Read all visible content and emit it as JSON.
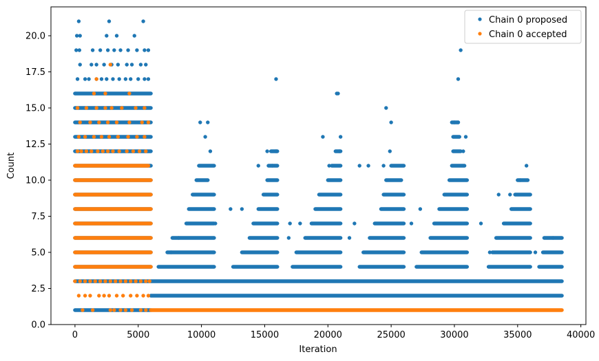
{
  "chart_data": {
    "type": "scatter",
    "title": "",
    "xlabel": "Iteration",
    "ylabel": "Count",
    "xlim": [
      -1900,
      40400
    ],
    "ylim": [
      0,
      22
    ],
    "x_ticks": [
      0,
      5000,
      10000,
      15000,
      20000,
      25000,
      30000,
      35000,
      40000
    ],
    "x_tick_labels": [
      "0",
      "5000",
      "10000",
      "15000",
      "20000",
      "25000",
      "30000",
      "35000",
      "40000"
    ],
    "y_ticks": [
      0.0,
      2.5,
      5.0,
      7.5,
      10.0,
      12.5,
      15.0,
      17.5,
      20.0
    ],
    "y_tick_labels": [
      "0.0",
      "2.5",
      "5.0",
      "7.5",
      "10.0",
      "12.5",
      "15.0",
      "17.5",
      "20.0"
    ],
    "grid": false,
    "legend": {
      "position": "top-right"
    },
    "series": [
      {
        "name": "Chain 0 proposed",
        "color": "#1f77b4",
        "bands": [
          {
            "y": 1,
            "segments": [
              [
                0,
                6000
              ]
            ]
          },
          {
            "y": 2,
            "segments": [
              [
                6000,
                38500
              ]
            ]
          },
          {
            "y": 3,
            "segments": [
              [
                0,
                38500
              ]
            ]
          },
          {
            "y": 4,
            "segments": [
              [
                0,
                6000
              ],
              [
                6600,
                11000
              ],
              [
                12500,
                16000
              ],
              [
                17200,
                21000
              ],
              [
                22500,
                26000
              ],
              [
                27000,
                31000
              ],
              [
                32700,
                36000
              ],
              [
                36700,
                38500
              ]
            ]
          },
          {
            "y": 5,
            "segments": [
              [
                0,
                6000
              ],
              [
                7300,
                11000
              ],
              [
                13200,
                16000
              ],
              [
                17500,
                21000
              ],
              [
                22800,
                26000
              ],
              [
                27400,
                31000
              ],
              [
                33000,
                36000
              ],
              [
                37000,
                38500
              ]
            ]
          },
          {
            "y": 6,
            "segments": [
              [
                0,
                6000
              ],
              [
                7700,
                11000
              ],
              [
                13800,
                16000
              ],
              [
                18200,
                21000
              ],
              [
                23300,
                26000
              ],
              [
                28100,
                31000
              ],
              [
                33300,
                36000
              ],
              [
                37100,
                38500
              ]
            ]
          },
          {
            "y": 7,
            "segments": [
              [
                0,
                6000
              ],
              [
                8800,
                11000
              ],
              [
                14100,
                16000
              ],
              [
                18700,
                21000
              ],
              [
                23700,
                26000
              ],
              [
                28400,
                31000
              ],
              [
                33900,
                36000
              ]
            ]
          },
          {
            "y": 8,
            "segments": [
              [
                0,
                6000
              ],
              [
                9000,
                11000
              ],
              [
                14500,
                16000
              ],
              [
                19000,
                21000
              ],
              [
                24200,
                26000
              ],
              [
                28800,
                31000
              ],
              [
                34500,
                36000
              ]
            ]
          },
          {
            "y": 9,
            "segments": [
              [
                0,
                6000
              ],
              [
                9300,
                11000
              ],
              [
                14900,
                16000
              ],
              [
                19300,
                21000
              ],
              [
                24400,
                26000
              ],
              [
                29200,
                31000
              ],
              [
                34800,
                36000
              ]
            ]
          },
          {
            "y": 10,
            "segments": [
              [
                0,
                6000
              ],
              [
                9600,
                10500
              ],
              [
                15200,
                16000
              ],
              [
                20000,
                21000
              ],
              [
                24600,
                25800
              ],
              [
                29600,
                31000
              ],
              [
                35000,
                35800
              ]
            ]
          },
          {
            "y": 11,
            "segments": [
              [
                0,
                6000
              ],
              [
                9800,
                11000
              ],
              [
                15300,
                16000
              ],
              [
                20300,
                21000
              ],
              [
                25000,
                26000
              ],
              [
                29800,
                30800
              ]
            ]
          },
          {
            "y": 12,
            "segments": [
              [
                0,
                6000
              ],
              [
                15500,
                16000
              ],
              [
                20600,
                21000
              ],
              [
                29900,
                30500
              ]
            ]
          },
          {
            "y": 13,
            "segments": [
              [
                0,
                6000
              ],
              [
                29900,
                30400
              ]
            ]
          },
          {
            "y": 14,
            "segments": [
              [
                0,
                6000
              ],
              [
                29800,
                30300
              ]
            ]
          },
          {
            "y": 15,
            "segments": [
              [
                0,
                6000
              ]
            ]
          },
          {
            "y": 16,
            "segments": [
              [
                0,
                6000
              ]
            ]
          }
        ],
        "points": [
          [
            9900,
            14
          ],
          [
            10500,
            14
          ],
          [
            10300,
            13
          ],
          [
            10700,
            12
          ],
          [
            14500,
            11
          ],
          [
            15200,
            12
          ],
          [
            15900,
            12
          ],
          [
            15600,
            11
          ],
          [
            15900,
            17
          ],
          [
            19600,
            13
          ],
          [
            20100,
            11
          ],
          [
            20700,
            16
          ],
          [
            20800,
            16
          ],
          [
            21000,
            13
          ],
          [
            20900,
            12
          ],
          [
            22500,
            11
          ],
          [
            23200,
            11
          ],
          [
            24400,
            11
          ],
          [
            24900,
            12
          ],
          [
            24600,
            15
          ],
          [
            25000,
            14
          ],
          [
            30000,
            14
          ],
          [
            30300,
            14
          ],
          [
            30300,
            17
          ],
          [
            30500,
            19
          ],
          [
            30900,
            13
          ],
          [
            30700,
            12
          ],
          [
            35700,
            11
          ],
          [
            35200,
            10
          ],
          [
            34400,
            9
          ],
          [
            33500,
            9
          ],
          [
            12300,
            8
          ],
          [
            11100,
            7
          ],
          [
            7600,
            5
          ],
          [
            8200,
            6
          ],
          [
            13200,
            8
          ],
          [
            17000,
            7
          ],
          [
            16900,
            6
          ],
          [
            17800,
            7
          ],
          [
            22100,
            7
          ],
          [
            21700,
            6
          ],
          [
            26600,
            7
          ],
          [
            27300,
            8
          ],
          [
            32100,
            7
          ],
          [
            32800,
            5
          ],
          [
            36400,
            5
          ],
          [
            37800,
            6
          ],
          [
            300,
            21
          ],
          [
            2700,
            21
          ],
          [
            5400,
            21
          ],
          [
            150,
            20
          ],
          [
            400,
            20
          ],
          [
            2500,
            20
          ],
          [
            3300,
            20
          ],
          [
            4700,
            20
          ],
          [
            100,
            19
          ],
          [
            350,
            19
          ],
          [
            1400,
            19
          ],
          [
            2000,
            19
          ],
          [
            2600,
            19
          ],
          [
            3100,
            19
          ],
          [
            3600,
            19
          ],
          [
            4200,
            19
          ],
          [
            4900,
            19
          ],
          [
            5500,
            19
          ],
          [
            5800,
            19
          ],
          [
            400,
            18
          ],
          [
            1300,
            18
          ],
          [
            1700,
            18
          ],
          [
            2300,
            18
          ],
          [
            2900,
            18
          ],
          [
            3400,
            18
          ],
          [
            4100,
            18
          ],
          [
            4500,
            18
          ],
          [
            5200,
            18
          ],
          [
            5600,
            18
          ],
          [
            200,
            17
          ],
          [
            800,
            17
          ],
          [
            1100,
            17
          ],
          [
            1700,
            17
          ],
          [
            2100,
            17
          ],
          [
            2500,
            17
          ],
          [
            3000,
            17
          ],
          [
            3500,
            17
          ],
          [
            4000,
            17
          ],
          [
            4400,
            17
          ],
          [
            5000,
            17
          ],
          [
            5500,
            17
          ],
          [
            5800,
            17
          ]
        ]
      },
      {
        "name": "Chain 0 accepted",
        "color": "#ff7f0e",
        "bands": [
          {
            "y": 1,
            "segments": [
              [
                6000,
                38500
              ]
            ]
          },
          {
            "y": 4,
            "segments": [
              [
                0,
                6000
              ]
            ]
          },
          {
            "y": 5,
            "segments": [
              [
                0,
                6000
              ]
            ]
          },
          {
            "y": 6,
            "segments": [
              [
                0,
                6000
              ]
            ]
          },
          {
            "y": 7,
            "segments": [
              [
                0,
                6000
              ]
            ]
          },
          {
            "y": 8,
            "segments": [
              [
                0,
                6000
              ]
            ]
          },
          {
            "y": 9,
            "segments": [
              [
                0,
                6000
              ]
            ]
          },
          {
            "y": 10,
            "segments": [
              [
                0,
                6000
              ]
            ]
          },
          {
            "y": 11,
            "segments": [
              [
                0,
                5800
              ]
            ]
          }
        ],
        "points": [
          [
            0,
            3
          ],
          [
            400,
            3
          ],
          [
            800,
            3
          ],
          [
            1200,
            3
          ],
          [
            1600,
            3
          ],
          [
            2000,
            3
          ],
          [
            2400,
            3
          ],
          [
            2800,
            3
          ],
          [
            3200,
            3
          ],
          [
            3600,
            3
          ],
          [
            4000,
            3
          ],
          [
            4400,
            3
          ],
          [
            4800,
            3
          ],
          [
            5200,
            3
          ],
          [
            5600,
            3
          ],
          [
            5900,
            3
          ],
          [
            300,
            2
          ],
          [
            800,
            2
          ],
          [
            1200,
            2
          ],
          [
            1900,
            2
          ],
          [
            2300,
            2
          ],
          [
            2700,
            2
          ],
          [
            3300,
            2
          ],
          [
            3800,
            2
          ],
          [
            4400,
            2
          ],
          [
            4900,
            2
          ],
          [
            5400,
            2
          ],
          [
            5800,
            2
          ],
          [
            600,
            1
          ],
          [
            1400,
            1
          ],
          [
            2800,
            1
          ],
          [
            3100,
            1
          ],
          [
            3600,
            1
          ],
          [
            4000,
            1
          ],
          [
            4500,
            1
          ],
          [
            5200,
            1
          ],
          [
            5600,
            1
          ],
          [
            200,
            12
          ],
          [
            500,
            12
          ],
          [
            900,
            12
          ],
          [
            1300,
            12
          ],
          [
            1800,
            12
          ],
          [
            2200,
            12
          ],
          [
            2600,
            12
          ],
          [
            3000,
            12
          ],
          [
            3500,
            12
          ],
          [
            4100,
            12
          ],
          [
            4600,
            12
          ],
          [
            5100,
            12
          ],
          [
            5600,
            12
          ],
          [
            300,
            13
          ],
          [
            800,
            13
          ],
          [
            1500,
            13
          ],
          [
            2100,
            13
          ],
          [
            2700,
            13
          ],
          [
            3400,
            13
          ],
          [
            4200,
            13
          ],
          [
            4900,
            13
          ],
          [
            5500,
            13
          ],
          [
            400,
            14
          ],
          [
            1200,
            14
          ],
          [
            1900,
            14
          ],
          [
            2600,
            14
          ],
          [
            3300,
            14
          ],
          [
            4300,
            14
          ],
          [
            5300,
            14
          ],
          [
            5800,
            14
          ],
          [
            200,
            15
          ],
          [
            900,
            15
          ],
          [
            1700,
            15
          ],
          [
            2400,
            15
          ],
          [
            2900,
            15
          ],
          [
            3700,
            15
          ],
          [
            4800,
            15
          ],
          [
            5500,
            15
          ],
          [
            2400,
            16
          ],
          [
            4300,
            16
          ],
          [
            1500,
            16
          ],
          [
            1700,
            17
          ],
          [
            2800,
            18
          ]
        ]
      }
    ]
  }
}
